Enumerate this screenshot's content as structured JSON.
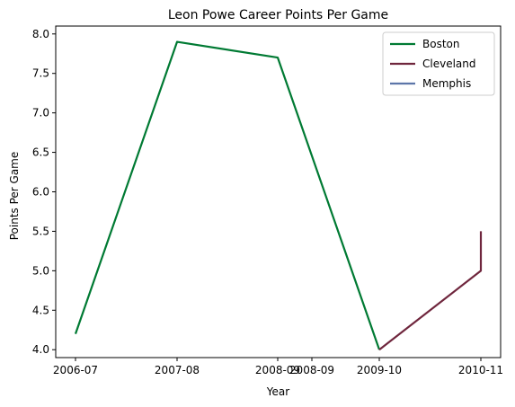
{
  "chart_data": {
    "type": "line",
    "title": "Leon Powe Career Points Per Game",
    "xlabel": "Year",
    "ylabel": "Points Per Game",
    "x_ticks": [
      "2006-07",
      "2007-08",
      "2008-09",
      "2008-09",
      "2009-10",
      "2010-11"
    ],
    "ylim": [
      3.9,
      8.1
    ],
    "y_ticks": [
      "4.0",
      "4.5",
      "5.0",
      "5.5",
      "6.0",
      "6.5",
      "7.0",
      "7.5",
      "8.0"
    ],
    "grid": false,
    "legend_position": "top-right",
    "series": [
      {
        "name": "Boston",
        "color": "#007a33",
        "points": [
          {
            "x": "2006-07",
            "y": 4.2
          },
          {
            "x": "2007-08",
            "y": 7.9
          },
          {
            "x": "2008-09",
            "y": 7.7
          },
          {
            "x": "2009-10",
            "y": 4.0
          }
        ]
      },
      {
        "name": "Cleveland",
        "color": "#6f263d",
        "points": [
          {
            "x": "2009-10",
            "y": 4.0
          },
          {
            "x": "2010-11",
            "y": 5.0
          },
          {
            "x": "2010-11",
            "y": 5.5
          }
        ]
      },
      {
        "name": "Memphis",
        "color": "#5d76a9",
        "points": [
          {
            "x": "2010-11",
            "y": 5.0
          }
        ]
      }
    ]
  }
}
